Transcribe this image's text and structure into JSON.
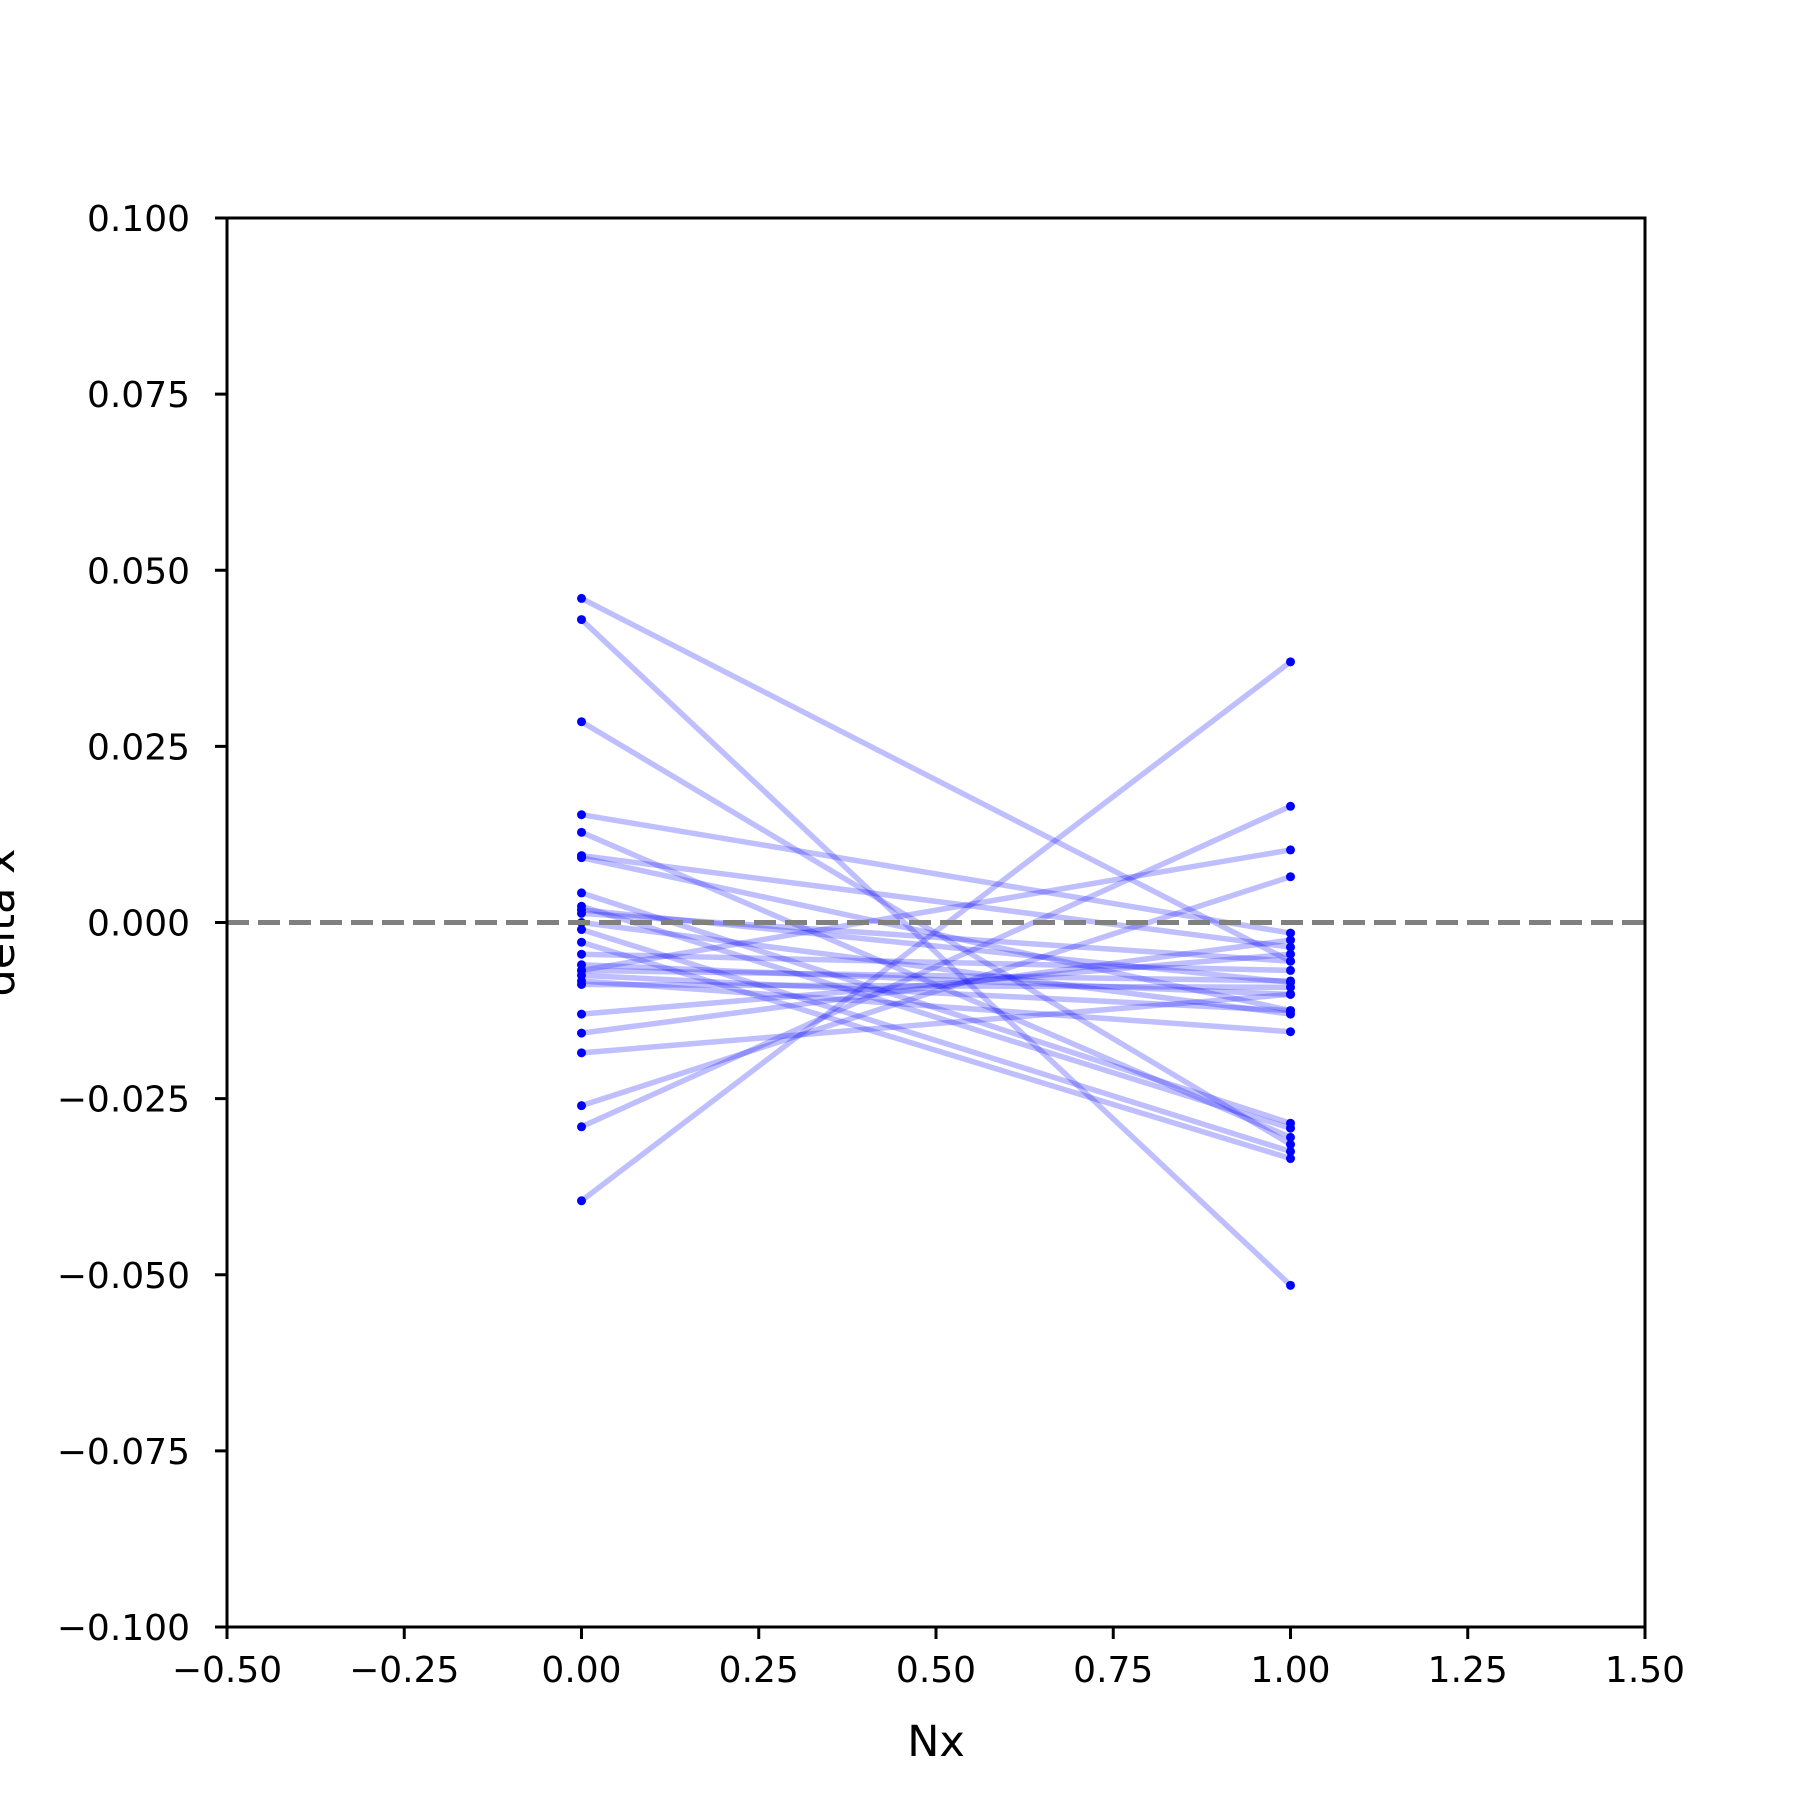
{
  "chart_data": {
    "type": "line",
    "title": "",
    "xlabel": "Nx",
    "ylabel": "delta x",
    "xlim": [
      -0.5,
      1.5
    ],
    "ylim": [
      -0.1,
      0.1
    ],
    "x_ticks": [
      "−0.50",
      "−0.25",
      "0.00",
      "0.25",
      "0.50",
      "0.75",
      "1.00",
      "1.25",
      "1.50"
    ],
    "x_tick_values": [
      -0.5,
      -0.25,
      0.0,
      0.25,
      0.5,
      0.75,
      1.0,
      1.25,
      1.5
    ],
    "y_ticks": [
      "0.100",
      "0.075",
      "0.050",
      "0.025",
      "0.000",
      "−0.025",
      "−0.050",
      "−0.075",
      "−0.100"
    ],
    "y_tick_values": [
      0.1,
      0.075,
      0.05,
      0.025,
      0.0,
      -0.025,
      -0.05,
      -0.075,
      -0.1
    ],
    "reference_line": {
      "y": 0.0,
      "style": "dashed",
      "color": "#808080"
    },
    "line_color": "#0000ff",
    "line_alpha": 0.25,
    "grid": false,
    "x": [
      0,
      1
    ],
    "pairs": [
      [
        0.046,
        -0.0055
      ],
      [
        0.043,
        -0.0515
      ],
      [
        0.0285,
        -0.0315
      ],
      [
        0.0153,
        -0.0015
      ],
      [
        0.0128,
        -0.0305
      ],
      [
        0.0095,
        -0.0035
      ],
      [
        0.0092,
        -0.0125
      ],
      [
        0.0042,
        -0.0285
      ],
      [
        0.0023,
        -0.0292
      ],
      [
        0.0018,
        -0.0085
      ],
      [
        0.0013,
        -0.0055
      ],
      [
        -0.001,
        -0.0325
      ],
      [
        -0.0028,
        -0.0335
      ],
      [
        -0.006,
        -0.0102
      ],
      [
        -0.0068,
        -0.0083
      ],
      [
        -0.0075,
        -0.0125
      ],
      [
        -0.0083,
        -0.0155
      ],
      [
        -0.0088,
        -0.0092
      ],
      [
        -0.013,
        -0.0045
      ],
      [
        -0.0157,
        -0.0025
      ],
      [
        -0.0185,
        -0.0102
      ],
      [
        -0.026,
        0.0065
      ],
      [
        -0.029,
        0.0165
      ],
      [
        -0.0395,
        0.037
      ],
      [
        -0.0068,
        0.0103
      ],
      [
        0.0,
        -0.013
      ],
      [
        -0.0045,
        -0.0068
      ]
    ]
  }
}
